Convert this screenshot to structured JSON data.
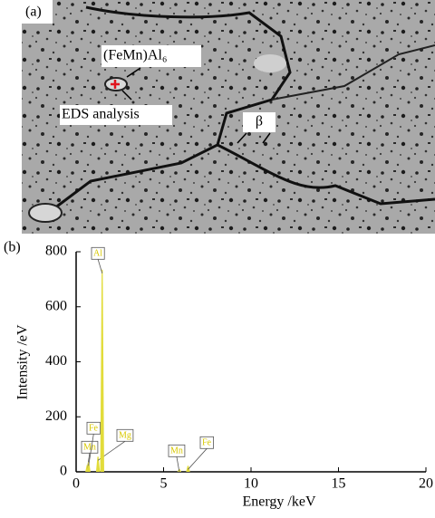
{
  "panel_a": {
    "label": "(a)",
    "phase_label": "(FeMn)Al₆",
    "point_label": "EDS analysis",
    "boundary_label": "β"
  },
  "chart_data": {
    "type": "spectrum",
    "panel_label": "(b)",
    "x_label": "Energy /keV",
    "y_label": "Intensity /eV",
    "x": [
      0.64,
      0.71,
      1.25,
      1.49,
      5.9,
      6.4
    ],
    "values": [
      25,
      35,
      55,
      735,
      10,
      22
    ],
    "peak_labels": [
      "Mn",
      "Fe",
      "Mg",
      "Al",
      "Mn",
      "Fe"
    ],
    "color": "#e2dc3a",
    "xlim": [
      0,
      20
    ],
    "xticks": [
      0,
      5,
      10,
      15,
      20
    ],
    "ylim": [
      0,
      800
    ],
    "yticks": [
      0,
      200,
      400,
      600,
      800
    ]
  }
}
